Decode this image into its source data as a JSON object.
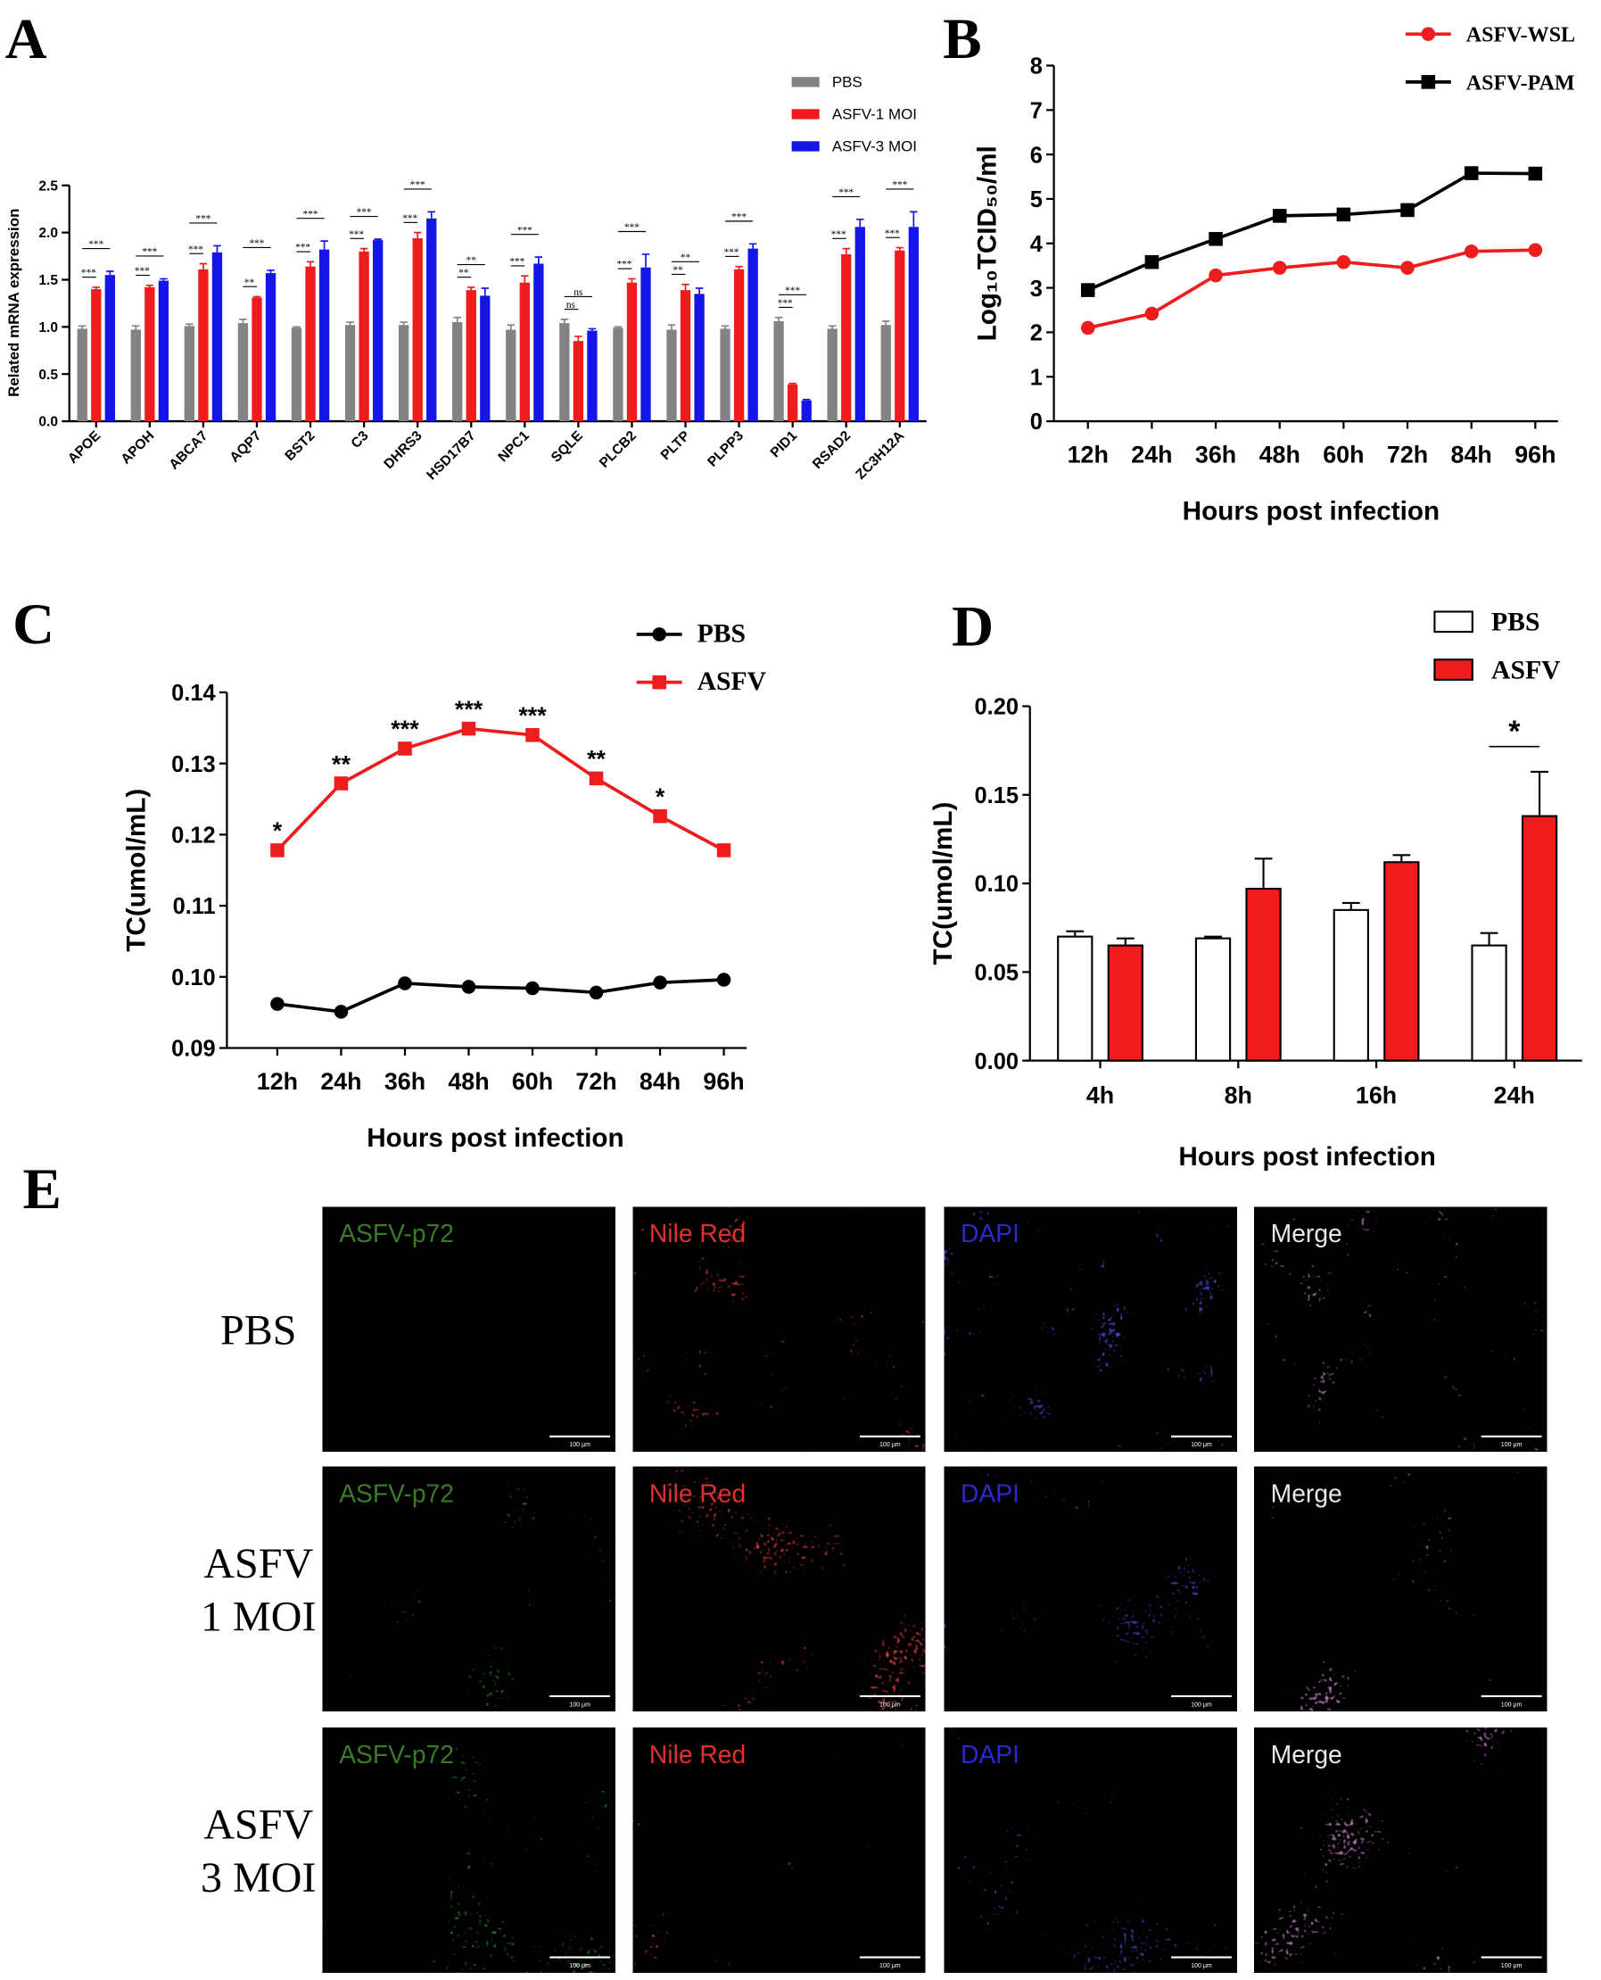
{
  "chart_data": [
    {
      "label": "A",
      "type": "bar",
      "ylabel": "Related mRNA expression",
      "categories": [
        "APOE",
        "APOH",
        "ABCA7",
        "AQP7",
        "BST2",
        "C3",
        "DHRS3",
        "HSD17B7",
        "NPC1",
        "SQLE",
        "PLCB2",
        "PLTP",
        "PLPP3",
        "PID1",
        "RSAD2",
        "ZC3H12A"
      ],
      "series": [
        {
          "name": "PBS",
          "color": "#838383",
          "values": [
            0.98,
            0.97,
            1.01,
            1.04,
            0.99,
            1.02,
            1.02,
            1.05,
            0.97,
            1.04,
            0.99,
            0.97,
            0.98,
            1.06,
            0.98,
            1.02
          ],
          "errors": [
            0.03,
            0.04,
            0.02,
            0.04,
            0.01,
            0.03,
            0.03,
            0.05,
            0.05,
            0.04,
            0.01,
            0.05,
            0.03,
            0.04,
            0.03,
            0.04
          ]
        },
        {
          "name": "ASFV-1 MOI",
          "color": "#ee1c1c",
          "values": [
            1.4,
            1.42,
            1.61,
            1.31,
            1.64,
            1.8,
            1.94,
            1.39,
            1.47,
            0.85,
            1.47,
            1.39,
            1.61,
            0.39,
            1.77,
            1.81
          ],
          "errors": [
            0.02,
            0.02,
            0.06,
            0.01,
            0.05,
            0.03,
            0.06,
            0.03,
            0.07,
            0.05,
            0.04,
            0.06,
            0.03,
            0.01,
            0.06,
            0.03
          ]
        },
        {
          "name": "ASFV-3 MOI",
          "color": "#1515e6",
          "values": [
            1.55,
            1.49,
            1.79,
            1.57,
            1.82,
            1.92,
            2.15,
            1.33,
            1.67,
            0.96,
            1.63,
            1.35,
            1.83,
            0.22,
            2.06,
            2.06
          ],
          "errors": [
            0.04,
            0.02,
            0.07,
            0.03,
            0.09,
            0.01,
            0.07,
            0.08,
            0.07,
            0.02,
            0.14,
            0.06,
            0.05,
            0.01,
            0.08,
            0.16
          ]
        }
      ],
      "annotations": [
        [
          "***",
          "***"
        ],
        [
          "***",
          "***"
        ],
        [
          "***",
          "***"
        ],
        [
          "**",
          "***"
        ],
        [
          "***",
          "***"
        ],
        [
          "***",
          "***"
        ],
        [
          "***",
          "***"
        ],
        [
          "**",
          "**"
        ],
        [
          "***",
          "***"
        ],
        [
          "ns",
          "ns"
        ],
        [
          "***",
          "***"
        ],
        [
          "**",
          "**"
        ],
        [
          "***",
          "***"
        ],
        [
          "***",
          "***"
        ],
        [
          "***",
          "***"
        ],
        [
          "***",
          "***"
        ]
      ],
      "ylim": [
        0,
        2.5
      ],
      "yticks": [
        {
          "value": 0,
          "label": "0.0"
        },
        0.5,
        {
          "value": 1,
          "label": "1.0"
        },
        1.5,
        {
          "value": 2,
          "label": "2.0"
        },
        2.5
      ]
    },
    {
      "label": "B",
      "type": "line",
      "xlabel": "Hours post infection",
      "ylabel": "Log₁₀TCID₅₀/ml",
      "categories": [
        "12h",
        "24h",
        "36h",
        "48h",
        "60h",
        "72h",
        "84h",
        "96h"
      ],
      "series": [
        {
          "name": "ASFV-WSL",
          "color": "#ee1c1c",
          "marker": "circle",
          "values": [
            2.1,
            2.42,
            3.28,
            3.45,
            3.58,
            3.45,
            3.82,
            3.85
          ]
        },
        {
          "name": "ASFV-PAM",
          "color": "#000000",
          "marker": "square",
          "values": [
            2.95,
            3.58,
            4.1,
            4.62,
            4.65,
            4.75,
            5.58,
            5.57
          ]
        }
      ],
      "ylim": [
        0,
        8
      ],
      "yticks": [
        0,
        1,
        2,
        3,
        4,
        5,
        6,
        7,
        8
      ]
    },
    {
      "label": "C",
      "type": "line",
      "xlabel": "Hours post infection",
      "ylabel": "TC(umol/mL)",
      "categories": [
        "12h",
        "24h",
        "36h",
        "48h",
        "60h",
        "72h",
        "84h",
        "96h"
      ],
      "series": [
        {
          "name": "PBS",
          "color": "#000000",
          "marker": "circle",
          "values": [
            0.0962,
            0.0951,
            0.0991,
            0.0986,
            0.0984,
            0.0978,
            0.0992,
            0.0996
          ]
        },
        {
          "name": "ASFV",
          "color": "#ee1c1c",
          "marker": "square",
          "values": [
            0.1178,
            0.1272,
            0.1321,
            0.1349,
            0.134,
            0.1279,
            0.1226,
            0.1178
          ],
          "annotations": [
            "*",
            "**",
            "***",
            "***",
            "***",
            "**",
            "*",
            null
          ]
        }
      ],
      "ylim": [
        0.09,
        0.14
      ],
      "yticks": [
        0.09,
        {
          "value": 0.1,
          "label": "0.10"
        },
        0.11,
        0.12,
        0.13,
        0.14
      ]
    },
    {
      "label": "D",
      "type": "bar",
      "xlabel": "Hours post infection",
      "ylabel": "TC(umol/mL)",
      "categories": [
        "4h",
        "8h",
        "16h",
        "24h"
      ],
      "series": [
        {
          "name": "PBS",
          "color": "#ffffff",
          "values": [
            0.07,
            0.069,
            0.085,
            0.065
          ],
          "errors": [
            0.003,
            0.001,
            0.004,
            0.007
          ]
        },
        {
          "name": "ASFV",
          "color": "#ee1c1c",
          "values": [
            0.065,
            0.097,
            0.112,
            0.138
          ],
          "errors": [
            0.004,
            0.017,
            0.004,
            0.025
          ]
        }
      ],
      "annotations": [
        null,
        null,
        null,
        "*"
      ],
      "ylim": [
        0,
        0.2
      ],
      "yticks": [
        {
          "value": 0,
          "label": "0.00"
        },
        0.05,
        {
          "value": 0.1,
          "label": "0.10"
        },
        0.15,
        {
          "value": 0.2,
          "label": "0.20"
        }
      ]
    }
  ],
  "panel_e": {
    "label": "E",
    "columns": [
      "ASFV-p72",
      "Nile Red",
      "DAPI",
      "Merge"
    ],
    "rows": [
      [
        "PBS"
      ],
      [
        "ASFV",
        "1 MOI"
      ],
      [
        "ASFV",
        "3 MOI"
      ]
    ],
    "scale_bar": "100 μm"
  }
}
